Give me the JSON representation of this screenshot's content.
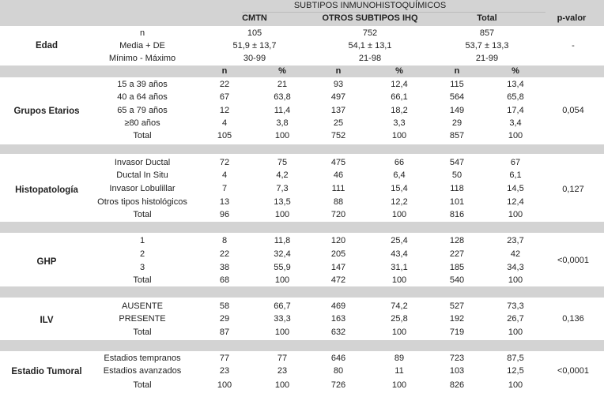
{
  "header": {
    "group_title": "SUBTIPOS INMUNOHISTOQUÍMICOS",
    "col_cmtn": "CMTN",
    "col_otros": "OTROS SUBTIPOS IHQ",
    "col_total": "Total",
    "col_pvalor": "p-valor"
  },
  "edad": {
    "label": "Edad",
    "rows": [
      [
        "n",
        "105",
        "752",
        "857"
      ],
      [
        "Media + DE",
        "51,9 ± 13,7",
        "54,1 ± 13,1",
        "53,7 ± 13,3"
      ],
      [
        "Mínimo - Máximo",
        "30-99",
        "21-98",
        "21-99"
      ]
    ],
    "pvalue": "-"
  },
  "subheader": [
    "n",
    "%",
    "n",
    "%",
    "n",
    "%"
  ],
  "sections": [
    {
      "label": "Grupos Etarios",
      "pvalue": "0,054",
      "rows": [
        [
          "15 a 39 años",
          "22",
          "21",
          "93",
          "12,4",
          "115",
          "13,4"
        ],
        [
          "40 a 64 años",
          "67",
          "63,8",
          "497",
          "66,1",
          "564",
          "65,8"
        ],
        [
          "65 a 79 años",
          "12",
          "11,4",
          "137",
          "18,2",
          "149",
          "17,4"
        ],
        [
          "≥80 años",
          "4",
          "3,8",
          "25",
          "3,3",
          "29",
          "3,4"
        ],
        [
          "Total",
          "105",
          "100",
          "752",
          "100",
          "857",
          "100"
        ]
      ]
    },
    {
      "label": "Histopatología",
      "pvalue": "0,127",
      "rows": [
        [
          "Invasor Ductal",
          "72",
          "75",
          "475",
          "66",
          "547",
          "67"
        ],
        [
          "Ductal In Situ",
          "4",
          "4,2",
          "46",
          "6,4",
          "50",
          "6,1"
        ],
        [
          "Invasor Lobulillar",
          "7",
          "7,3",
          "111",
          "15,4",
          "118",
          "14,5"
        ],
        [
          "Otros tipos histológicos",
          "13",
          "13,5",
          "88",
          "12,2",
          "101",
          "12,4"
        ],
        [
          "Total",
          "96",
          "100",
          "720",
          "100",
          "816",
          "100"
        ]
      ]
    },
    {
      "label": "GHP",
      "pvalue": "<0,0001",
      "rows": [
        [
          "1",
          "8",
          "11,8",
          "120",
          "25,4",
          "128",
          "23,7"
        ],
        [
          "2",
          "22",
          "32,4",
          "205",
          "43,4",
          "227",
          "42"
        ],
        [
          "3",
          "38",
          "55,9",
          "147",
          "31,1",
          "185",
          "34,3"
        ],
        [
          "Total",
          "68",
          "100",
          "472",
          "100",
          "540",
          "100"
        ]
      ]
    },
    {
      "label": "ILV",
      "pvalue": "0,136",
      "rows": [
        [
          "AUSENTE",
          "58",
          "66,7",
          "469",
          "74,2",
          "527",
          "73,3"
        ],
        [
          "PRESENTE",
          "29",
          "33,3",
          "163",
          "25,8",
          "192",
          "26,7"
        ],
        [
          "Total",
          "87",
          "100",
          "632",
          "100",
          "719",
          "100"
        ]
      ]
    },
    {
      "label": "Estadio Tumoral",
      "pvalue": "<0,0001",
      "rows": [
        [
          "Estadios tempranos",
          "77",
          "77",
          "646",
          "89",
          "723",
          "87,5"
        ],
        [
          "Estadios avanzados",
          "23",
          "23",
          "80",
          "11",
          "103",
          "12,5"
        ],
        [
          "Total",
          "100",
          "100",
          "726",
          "100",
          "826",
          "100"
        ]
      ]
    }
  ]
}
